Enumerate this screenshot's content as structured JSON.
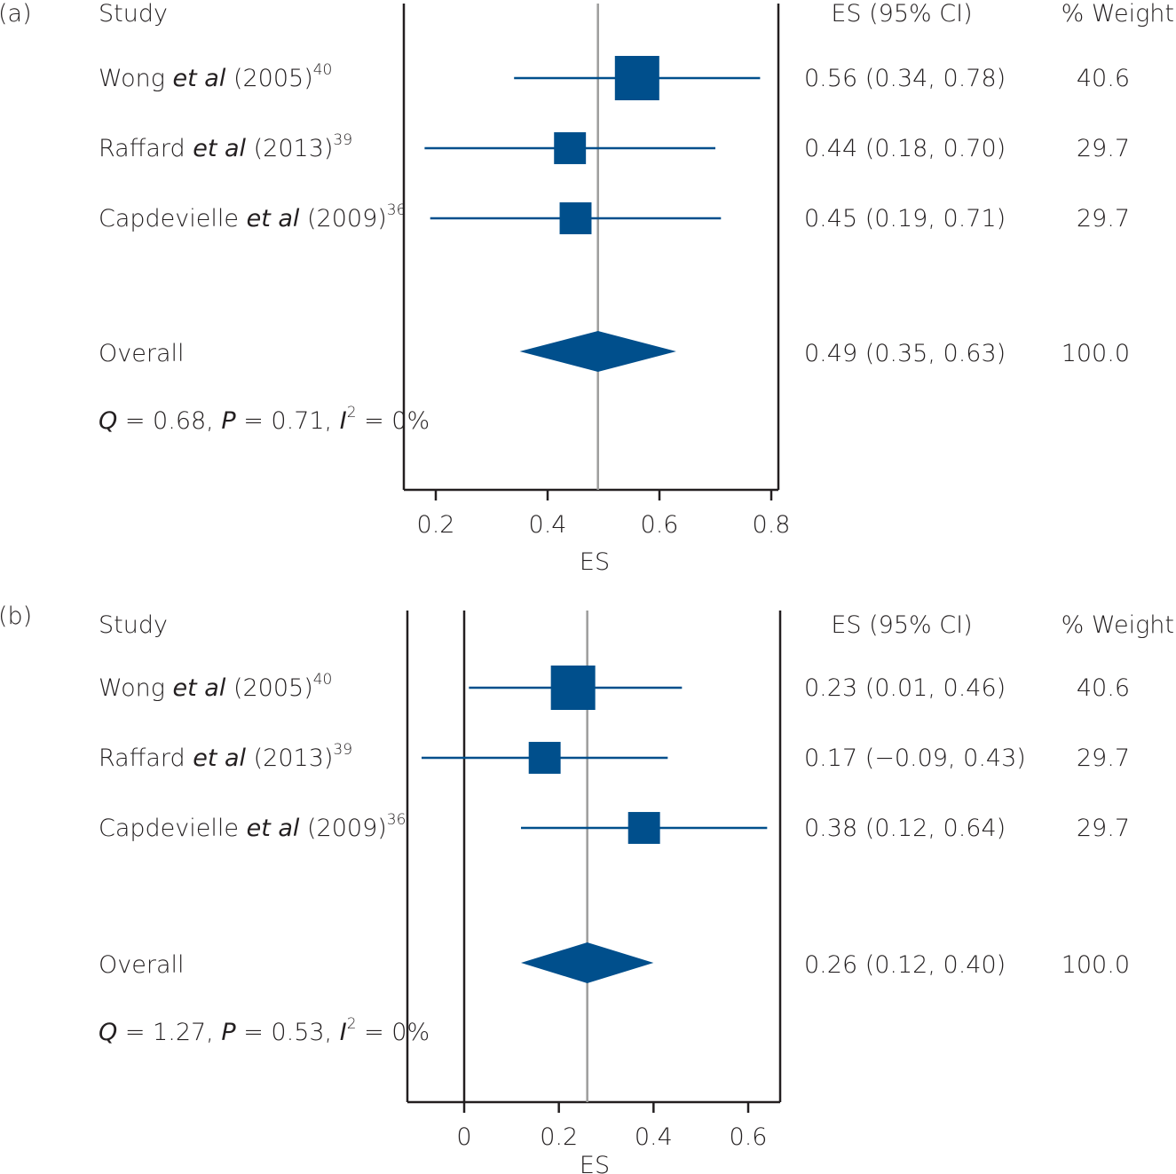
{
  "chart_data": [
    {
      "type": "forest",
      "panel_label": "(a)",
      "headers": {
        "study": "Study",
        "es_ci": "ES (95% CI)",
        "weight": "% Weight"
      },
      "studies": [
        {
          "author": "Wong",
          "etal": "et al",
          "year": "(2005)",
          "ref": "40",
          "es": 0.56,
          "lo": 0.34,
          "hi": 0.78,
          "es_text": "0.56 (0.34, 0.78)",
          "weight": 40.6,
          "weight_text": "40.6"
        },
        {
          "author": "Raffard",
          "etal": "et al",
          "year": "(2013)",
          "ref": "39",
          "es": 0.44,
          "lo": 0.18,
          "hi": 0.7,
          "es_text": "0.44 (0.18, 0.70)",
          "weight": 29.7,
          "weight_text": "29.7"
        },
        {
          "author": "Capdevielle",
          "etal": "et al",
          "year": "(2009)",
          "ref": "36",
          "es": 0.45,
          "lo": 0.19,
          "hi": 0.71,
          "es_text": "0.45 (0.19, 0.71)",
          "weight": 29.7,
          "weight_text": "29.7"
        }
      ],
      "overall": {
        "label": "Overall",
        "es": 0.49,
        "lo": 0.35,
        "hi": 0.63,
        "es_text": "0.49 (0.35, 0.63)",
        "weight_text": "100.0"
      },
      "heterogeneity": {
        "q_sym": "Q",
        "q_val": " = 0.68, ",
        "p_sym": "P",
        "p_val": " = 0.71, ",
        "i_sym": "I",
        "i_exp": "2",
        "i_val": " = 0%"
      },
      "xaxis": {
        "label": "ES",
        "ticks": [
          0.2,
          0.4,
          0.6,
          0.8
        ],
        "tick_labels": [
          "0.2",
          "0.4",
          "0.6",
          "0.8"
        ],
        "xlim": [
          0.14,
          0.81
        ]
      },
      "zero_line": false
    },
    {
      "type": "forest",
      "panel_label": "(b)",
      "headers": {
        "study": "Study",
        "es_ci": "ES (95% CI)",
        "weight": "% Weight"
      },
      "studies": [
        {
          "author": "Wong",
          "etal": "et al",
          "year": "(2005)",
          "ref": "40",
          "es": 0.23,
          "lo": 0.01,
          "hi": 0.46,
          "es_text": "0.23 (0.01, 0.46)",
          "weight": 40.6,
          "weight_text": "40.6"
        },
        {
          "author": "Raffard",
          "etal": "et al",
          "year": "(2013)",
          "ref": "39",
          "es": 0.17,
          "lo": -0.09,
          "hi": 0.43,
          "es_text": "0.17 (−0.09, 0.43)",
          "weight": 29.7,
          "weight_text": "29.7"
        },
        {
          "author": "Capdevielle",
          "etal": "et al",
          "year": "(2009)",
          "ref": "36",
          "es": 0.38,
          "lo": 0.12,
          "hi": 0.64,
          "es_text": "0.38 (0.12, 0.64)",
          "weight": 29.7,
          "weight_text": "29.7"
        }
      ],
      "overall": {
        "label": "Overall",
        "es": 0.26,
        "lo": 0.12,
        "hi": 0.4,
        "es_text": "0.26 (0.12, 0.40)",
        "weight_text": "100.0"
      },
      "heterogeneity": {
        "q_sym": "Q",
        "q_val": " = 1.27, ",
        "p_sym": "P",
        "p_val": " = 0.53, ",
        "i_sym": "I",
        "i_exp": "2",
        "i_val": " = 0%"
      },
      "xaxis": {
        "label": "ES",
        "ticks": [
          0,
          0.2,
          0.4,
          0.6
        ],
        "tick_labels": [
          "0",
          "0.2",
          "0.4",
          "0.6"
        ],
        "xlim": [
          -0.12,
          0.67
        ]
      },
      "zero_line": true
    }
  ],
  "colors": {
    "marker": "#004f8c",
    "text": "#231f20",
    "axis": "#231f20",
    "overall_line": "#9d9d9c"
  }
}
